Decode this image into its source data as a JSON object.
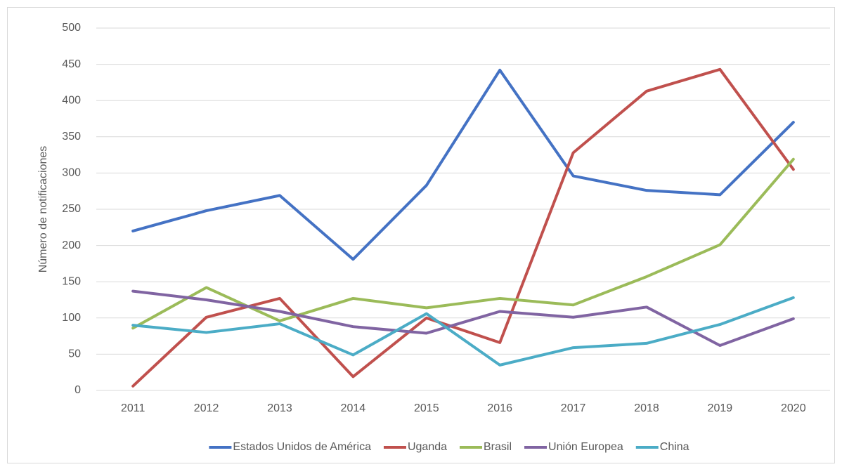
{
  "chart_data": {
    "type": "line",
    "y_label": "Número de notificaciones",
    "categories": [
      "2011",
      "2012",
      "2013",
      "2014",
      "2015",
      "2016",
      "2017",
      "2018",
      "2019",
      "2020"
    ],
    "series": [
      {
        "name": "Estados Unidos de América",
        "color": "#4472c4",
        "values": [
          220,
          248,
          269,
          181,
          283,
          442,
          296,
          276,
          270,
          370
        ]
      },
      {
        "name": "Uganda",
        "color": "#c0504d",
        "values": [
          6,
          101,
          127,
          19,
          100,
          66,
          328,
          413,
          443,
          305
        ]
      },
      {
        "name": "Brasil",
        "color": "#9bbb59",
        "values": [
          86,
          142,
          96,
          127,
          114,
          127,
          118,
          157,
          201,
          319
        ]
      },
      {
        "name": "Unión Europea",
        "color": "#8064a2",
        "values": [
          137,
          125,
          109,
          88,
          79,
          109,
          101,
          115,
          62,
          99
        ]
      },
      {
        "name": "China",
        "color": "#4bacc6",
        "values": [
          90,
          80,
          92,
          49,
          106,
          35,
          59,
          65,
          91,
          128
        ]
      }
    ],
    "ylim": [
      0,
      500
    ],
    "yticks": [
      0,
      50,
      100,
      150,
      200,
      250,
      300,
      350,
      400,
      450,
      500
    ],
    "grid": true,
    "legend": "bottom"
  }
}
